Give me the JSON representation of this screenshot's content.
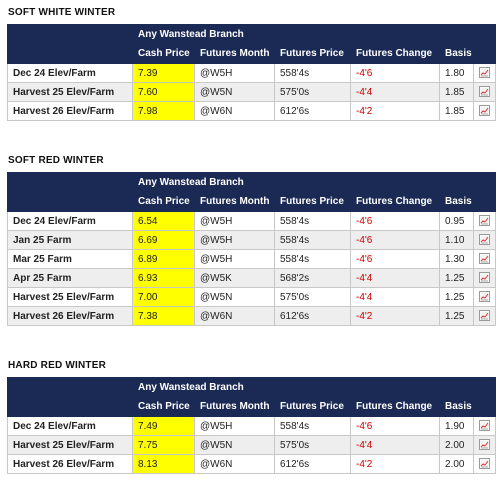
{
  "colors": {
    "header_bg": "#1b2a55",
    "cash_highlight": "#ffff00",
    "change_text": "#cc0000"
  },
  "headers": {
    "cash_price": "Cash Price",
    "futures_month": "Futures Month",
    "futures_price": "Futures Price",
    "futures_change": "Futures Change",
    "basis": "Basis"
  },
  "sections": [
    {
      "title": "SOFT WHITE WINTER",
      "branch": "Any Wanstead Branch",
      "rows": [
        {
          "location": "Dec 24 Elev/Farm",
          "cash": "7.39",
          "month": "@W5H",
          "fprice": "558'4s",
          "change": "-4'6",
          "basis": "1.80"
        },
        {
          "location": "Harvest 25 Elev/Farm",
          "cash": "7.60",
          "month": "@W5N",
          "fprice": "575'0s",
          "change": "-4'4",
          "basis": "1.85"
        },
        {
          "location": "Harvest 26 Elev/Farm",
          "cash": "7.98",
          "month": "@W6N",
          "fprice": "612'6s",
          "change": "-4'2",
          "basis": "1.85"
        }
      ]
    },
    {
      "title": "SOFT RED WINTER",
      "branch": "Any Wanstead Branch",
      "rows": [
        {
          "location": "Dec 24 Elev/Farm",
          "cash": "6.54",
          "month": "@W5H",
          "fprice": "558'4s",
          "change": "-4'6",
          "basis": "0.95"
        },
        {
          "location": "Jan 25 Farm",
          "cash": "6.69",
          "month": "@W5H",
          "fprice": "558'4s",
          "change": "-4'6",
          "basis": "1.10"
        },
        {
          "location": "Mar 25 Farm",
          "cash": "6.89",
          "month": "@W5H",
          "fprice": "558'4s",
          "change": "-4'6",
          "basis": "1.30"
        },
        {
          "location": "Apr 25 Farm",
          "cash": "6.93",
          "month": "@W5K",
          "fprice": "568'2s",
          "change": "-4'4",
          "basis": "1.25"
        },
        {
          "location": "Harvest 25 Elev/Farm",
          "cash": "7.00",
          "month": "@W5N",
          "fprice": "575'0s",
          "change": "-4'4",
          "basis": "1.25"
        },
        {
          "location": "Harvest 26 Elev/Farm",
          "cash": "7.38",
          "month": "@W6N",
          "fprice": "612'6s",
          "change": "-4'2",
          "basis": "1.25"
        }
      ]
    },
    {
      "title": "HARD RED WINTER",
      "branch": "Any Wanstead Branch",
      "rows": [
        {
          "location": "Dec 24 Elev/Farm",
          "cash": "7.49",
          "month": "@W5H",
          "fprice": "558'4s",
          "change": "-4'6",
          "basis": "1.90"
        },
        {
          "location": "Harvest 25 Elev/Farm",
          "cash": "7.75",
          "month": "@W5N",
          "fprice": "575'0s",
          "change": "-4'4",
          "basis": "2.00"
        },
        {
          "location": "Harvest 26 Elev/Farm",
          "cash": "8.13",
          "month": "@W6N",
          "fprice": "612'6s",
          "change": "-4'2",
          "basis": "2.00"
        }
      ]
    }
  ]
}
